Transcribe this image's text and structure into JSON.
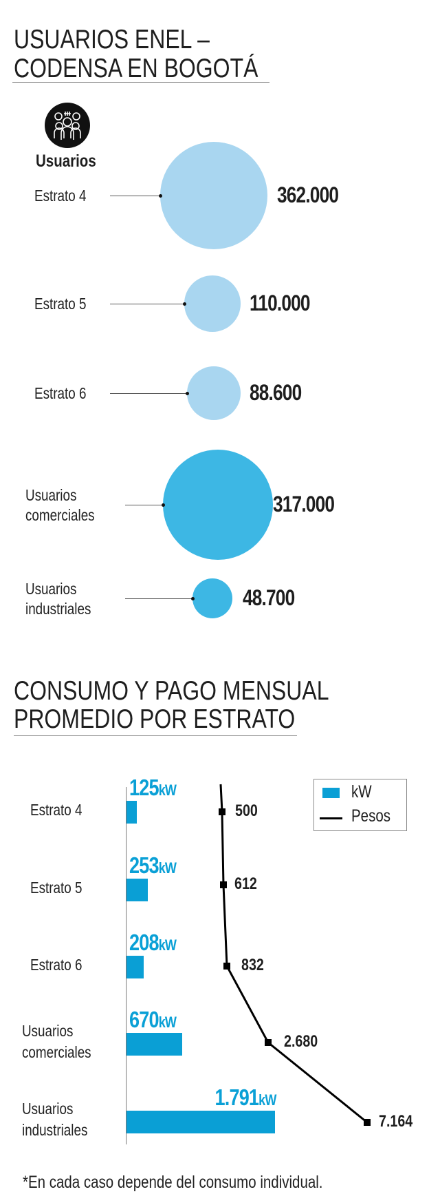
{
  "section1": {
    "title_line1": "USUARIOS ENEL –",
    "title_line2": "CODENSA EN BOGOTÁ",
    "icon": "users-group-icon",
    "icon_label": "Usuarios",
    "items": [
      {
        "label": [
          "Estrato 4"
        ],
        "value": "362.000",
        "users": 362000,
        "color": "#a9d6f0"
      },
      {
        "label": [
          "Estrato 5"
        ],
        "value": "110.000",
        "users": 110000,
        "color": "#a9d6f0"
      },
      {
        "label": [
          "Estrato 6"
        ],
        "value": "88.600",
        "users": 88600,
        "color": "#a9d6f0"
      },
      {
        "label": [
          "Usuarios",
          "comerciales"
        ],
        "value": "317.000",
        "users": 317000,
        "color": "#3db7e4"
      },
      {
        "label": [
          "Usuarios",
          "industriales"
        ],
        "value": "48.700",
        "users": 48700,
        "color": "#3db7e4"
      }
    ]
  },
  "section2": {
    "title_line1": "CONSUMO Y PAGO MENSUAL",
    "title_line2": "PROMEDIO POR ESTRATO",
    "footnote": "*En cada caso depende del consumo individual."
  },
  "chart_data": {
    "type": "bar",
    "title": "CONSUMO Y PAGO MENSUAL PROMEDIO POR ESTRATO",
    "categories": [
      [
        "Estrato 4"
      ],
      [
        "Estrato 5"
      ],
      [
        "Estrato 6"
      ],
      [
        "Usuarios",
        "comerciales"
      ],
      [
        "Usuarios",
        "industriales"
      ]
    ],
    "series": [
      {
        "name": "kW",
        "type": "bar",
        "color": "#0a9fd5",
        "values": [
          125,
          253,
          208,
          670,
          1791
        ],
        "labels": [
          "125",
          "253",
          "208",
          "670",
          "1.791"
        ],
        "unit": "kW"
      },
      {
        "name": "Pesos",
        "type": "line",
        "color": "#000000",
        "values": [
          500,
          612,
          832,
          2680,
          7164
        ],
        "labels": [
          "500",
          "612",
          "832",
          "2.680",
          "7.164"
        ]
      }
    ],
    "legend": {
      "position": "top-right",
      "entries": [
        "kW",
        "Pesos"
      ]
    }
  }
}
